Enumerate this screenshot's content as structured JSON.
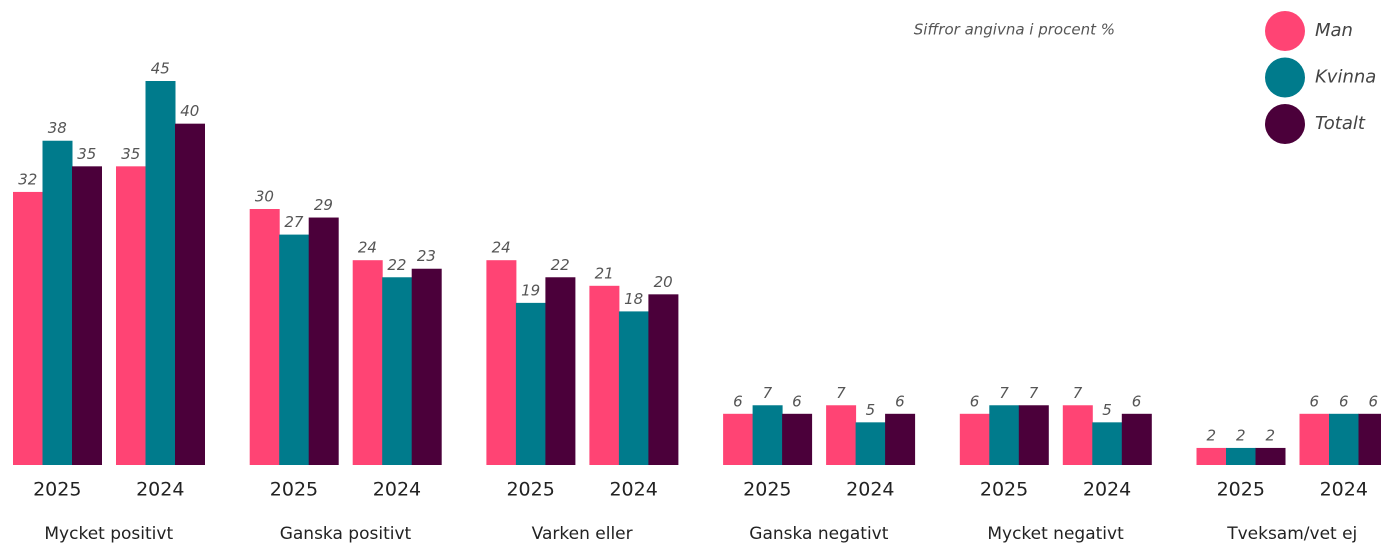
{
  "chart_data": {
    "type": "grouped_bar",
    "note": "Siffror angivna i procent %",
    "categories": [
      "Mycket positivt",
      "Ganska positivt",
      "Varken eller",
      "Ganska negativt",
      "Mycket negativt",
      "Tveksam/vet ej"
    ],
    "years": [
      "2025",
      "2024"
    ],
    "series": [
      {
        "name": "Man",
        "color": "#ff4474",
        "values": [
          [
            32,
            35
          ],
          [
            30,
            24
          ],
          [
            24,
            21
          ],
          [
            6,
            7
          ],
          [
            6,
            7
          ],
          [
            2,
            6
          ]
        ]
      },
      {
        "name": "Kvinna",
        "color": "#007b8c",
        "values": [
          [
            38,
            45
          ],
          [
            27,
            22
          ],
          [
            19,
            18
          ],
          [
            7,
            5
          ],
          [
            7,
            5
          ],
          [
            2,
            6
          ]
        ]
      },
      {
        "name": "Totalt",
        "color": "#4b003a",
        "values": [
          [
            35,
            40
          ],
          [
            29,
            23
          ],
          [
            22,
            20
          ],
          [
            6,
            6
          ],
          [
            7,
            6
          ],
          [
            2,
            6
          ]
        ]
      }
    ],
    "legend": "top-right"
  }
}
